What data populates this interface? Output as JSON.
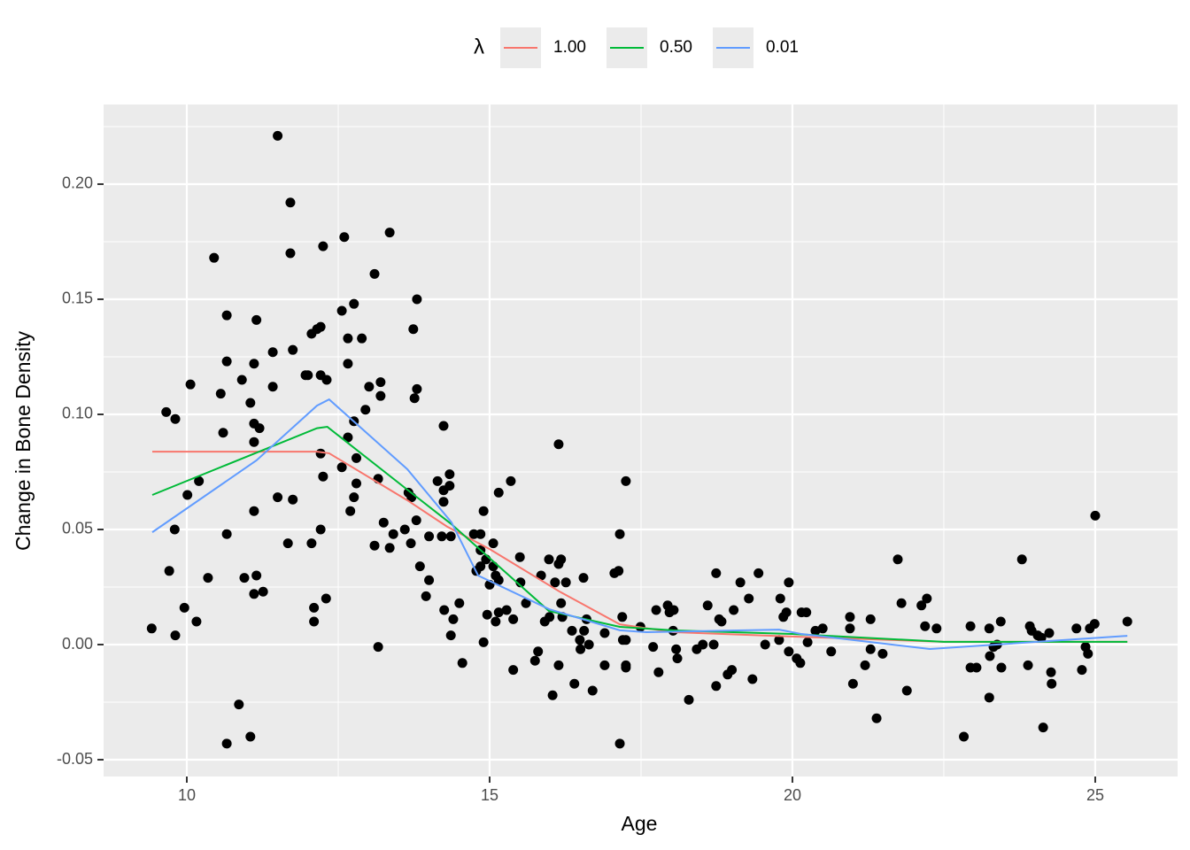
{
  "chart_data": {
    "type": "scatter",
    "x_label": "Age",
    "y_label": "Change in Bone Density",
    "legend_title": "λ",
    "legend_position": "top",
    "grid": true,
    "xlim": [
      8.626,
      26.36
    ],
    "ylim": [
      -0.0573,
      0.2346
    ],
    "xticks": [
      10,
      15,
      20,
      25
    ],
    "xminor_ticks": [
      12.5,
      17.5,
      22.5
    ],
    "yticks": [
      {
        "value": -0.05,
        "label": "-0.05"
      },
      {
        "value": 0,
        "label": "0.00"
      },
      {
        "value": 0.05,
        "label": "0.05"
      },
      {
        "value": 0.1,
        "label": "0.10"
      },
      {
        "value": 0.15,
        "label": "0.15"
      },
      {
        "value": 0.2,
        "label": "0.20"
      }
    ],
    "yminor_ticks": [
      -0.025,
      0.025,
      0.075,
      0.125,
      0.175,
      0.225
    ],
    "points": {
      "color": "#000000",
      "x": [
        9.42,
        9.66,
        9.81,
        9.8,
        9.71,
        9.81,
        9.96,
        10.01,
        10.06,
        10.2,
        10.16,
        10.35,
        10.45,
        10.56,
        10.6,
        10.66,
        10.66,
        10.66,
        10.66,
        10.86,
        10.91,
        10.95,
        11.05,
        11.05,
        11.11,
        11.11,
        11.11,
        11.11,
        11.11,
        11.15,
        11.15,
        11.2,
        11.26,
        11.42,
        11.42,
        11.5,
        11.5,
        11.67,
        11.71,
        11.71,
        11.75,
        11.75,
        11.96,
        12.0,
        12.06,
        12.06,
        12.1,
        12.1,
        12.15,
        12.21,
        12.21,
        12.21,
        12.25,
        12.21,
        12.25,
        12.31,
        12.3,
        12.56,
        12.56,
        12.6,
        12.66,
        12.66,
        12.66,
        12.7,
        12.76,
        12.76,
        12.76,
        12.8,
        12.8,
        12.89,
        12.95,
        13.01,
        13.1,
        13.1,
        13.16,
        13.16,
        13.2,
        13.2,
        13.25,
        13.35,
        13.35,
        13.41,
        13.6,
        13.66,
        13.71,
        13.7,
        13.74,
        13.76,
        13.8,
        13.8,
        13.79,
        13.85,
        13.95,
        14.0,
        14.0,
        14.14,
        14.21,
        14.24,
        14.24,
        14.24,
        14.25,
        14.34,
        14.34,
        14.36,
        14.36,
        14.4,
        14.5,
        14.55,
        14.74,
        14.78,
        14.85,
        14.85,
        14.85,
        14.9,
        14.9,
        14.94,
        14.96,
        15.0,
        15.06,
        15.06,
        15.1,
        15.1,
        15.15,
        15.15,
        15.15,
        15.28,
        15.35,
        15.39,
        15.39,
        15.5,
        15.51,
        15.6,
        15.75,
        15.8,
        15.85,
        15.91,
        15.98,
        15.99,
        16.04,
        16.08,
        16.14,
        16.14,
        16.14,
        16.18,
        16.18,
        16.2,
        16.26,
        16.36,
        16.4,
        16.49,
        16.5,
        16.55,
        16.56,
        16.6,
        16.64,
        16.7,
        16.9,
        16.9,
        17.06,
        17.13,
        17.15,
        17.19,
        17.2,
        17.25,
        17.25,
        17.25,
        17.25,
        17.15,
        17.49,
        17.7,
        17.75,
        17.79,
        17.94,
        17.97,
        18.04,
        18.03,
        18.08,
        18.1,
        18.29,
        18.42,
        18.52,
        18.6,
        18.7,
        18.74,
        18.74,
        18.79,
        18.83,
        18.93,
        19.0,
        19.03,
        19.14,
        19.28,
        19.34,
        19.44,
        19.55,
        19.78,
        19.8,
        19.85,
        19.9,
        19.94,
        19.94,
        20.07,
        20.13,
        20.15,
        20.23,
        20.25,
        20.38,
        20.5,
        20.64,
        20.95,
        20.95,
        21.0,
        21.2,
        21.29,
        21.29,
        21.39,
        21.49,
        21.74,
        21.8,
        21.89,
        22.13,
        22.22,
        22.19,
        22.38,
        22.83,
        22.94,
        22.94,
        23.04,
        23.25,
        23.25,
        23.26,
        23.32,
        23.38,
        23.44,
        23.45,
        23.79,
        23.89,
        23.92,
        23.95,
        24.05,
        24.11,
        24.14,
        24.24,
        24.27,
        24.28,
        24.69,
        24.78,
        24.84,
        24.88,
        24.91,
        24.99,
        25.0,
        25.53
      ],
      "values": [
        0.007,
        0.101,
        0.098,
        0.05,
        0.032,
        0.004,
        0.016,
        0.065,
        0.113,
        0.071,
        0.01,
        0.029,
        0.168,
        0.109,
        0.092,
        0.143,
        0.123,
        0.048,
        -0.043,
        -0.026,
        0.115,
        0.029,
        0.105,
        -0.04,
        0.122,
        0.096,
        0.088,
        0.058,
        0.022,
        0.141,
        0.03,
        0.094,
        0.023,
        0.127,
        0.112,
        0.221,
        0.064,
        0.044,
        0.192,
        0.17,
        0.128,
        0.063,
        0.117,
        0.117,
        0.135,
        0.044,
        0.016,
        0.01,
        0.137,
        0.138,
        0.083,
        0.05,
        0.173,
        0.117,
        0.073,
        0.115,
        0.02,
        0.145,
        0.077,
        0.177,
        0.133,
        0.122,
        0.09,
        0.058,
        0.148,
        0.097,
        0.064,
        0.081,
        0.07,
        0.133,
        0.102,
        0.112,
        0.161,
        0.043,
        0.072,
        -0.001,
        0.114,
        0.108,
        0.053,
        0.179,
        0.042,
        0.048,
        0.05,
        0.066,
        0.064,
        0.044,
        0.137,
        0.107,
        0.15,
        0.111,
        0.054,
        0.034,
        0.021,
        0.047,
        0.028,
        0.071,
        0.047,
        0.095,
        0.067,
        0.062,
        0.015,
        0.074,
        0.069,
        0.047,
        0.004,
        0.011,
        0.018,
        -0.008,
        0.048,
        0.032,
        0.048,
        0.041,
        0.034,
        0.058,
        0.001,
        0.037,
        0.013,
        0.026,
        0.044,
        0.034,
        0.03,
        0.01,
        0.066,
        0.028,
        0.014,
        0.015,
        0.071,
        0.011,
        -0.011,
        0.038,
        0.027,
        0.018,
        -0.007,
        -0.003,
        0.03,
        0.01,
        0.037,
        0.012,
        -0.022,
        0.027,
        0.087,
        0.035,
        -0.009,
        0.037,
        0.018,
        0.012,
        0.027,
        0.006,
        -0.017,
        0.002,
        -0.002,
        0.029,
        0.006,
        0.011,
        0.0,
        -0.02,
        0.005,
        -0.009,
        0.031,
        0.032,
        0.048,
        0.012,
        0.002,
        0.071,
        0.002,
        -0.009,
        -0.01,
        -0.043,
        0.0077,
        -0.001,
        0.015,
        -0.012,
        0.017,
        0.014,
        0.015,
        0.006,
        -0.002,
        -0.006,
        -0.024,
        -0.002,
        0.0,
        0.017,
        0.0,
        0.031,
        -0.018,
        0.011,
        0.01,
        -0.013,
        -0.011,
        0.015,
        0.027,
        0.02,
        -0.015,
        0.031,
        0.0,
        0.002,
        0.02,
        0.012,
        0.014,
        0.027,
        -0.003,
        -0.006,
        -0.008,
        0.014,
        0.014,
        0.001,
        0.006,
        0.007,
        -0.003,
        0.012,
        0.007,
        -0.017,
        -0.009,
        0.011,
        -0.002,
        -0.032,
        -0.004,
        0.037,
        0.018,
        -0.02,
        0.017,
        0.02,
        0.008,
        0.007,
        -0.04,
        0.008,
        -0.01,
        -0.01,
        0.007,
        -0.023,
        -0.005,
        -0.001,
        0.0,
        0.01,
        -0.01,
        0.037,
        -0.009,
        0.008,
        0.006,
        0.004,
        0.003,
        -0.036,
        0.005,
        -0.012,
        -0.017,
        0.007,
        -0.011,
        -0.001,
        -0.004,
        0.007,
        0.009,
        0.056,
        0.01
      ]
    },
    "series": [
      {
        "name": "1.00",
        "color": "#F8766D",
        "x": [
          9.43,
          12.15,
          12.35,
          13.64,
          14.3,
          15.0,
          16.15,
          17.15,
          18.03,
          20.0,
          22.5,
          25.53
        ],
        "values": [
          0.0838,
          0.0838,
          0.0831,
          0.0627,
          0.0512,
          0.0415,
          0.0231,
          0.0088,
          0.0054,
          0.0035,
          0.0012,
          0.0012
        ]
      },
      {
        "name": "0.50",
        "color": "#00BA38",
        "x": [
          9.43,
          12.15,
          12.32,
          13.64,
          14.37,
          15.98,
          17.15,
          18.03,
          20.0,
          22.5,
          25.53
        ],
        "values": [
          0.065,
          0.094,
          0.0946,
          0.0673,
          0.0523,
          0.0146,
          0.0077,
          0.0062,
          0.0046,
          0.0012,
          0.0012
        ]
      },
      {
        "name": "0.01",
        "color": "#619CFF",
        "x": [
          9.43,
          11.15,
          12.15,
          12.35,
          13.64,
          14.37,
          14.81,
          15.98,
          17.15,
          17.59,
          19.78,
          20.15,
          22.27,
          25.53
        ],
        "values": [
          0.0488,
          0.08,
          0.1038,
          0.1065,
          0.0762,
          0.0531,
          0.03,
          0.0154,
          0.0062,
          0.0054,
          0.0065,
          0.0046,
          -0.0019,
          0.0038
        ]
      }
    ]
  }
}
